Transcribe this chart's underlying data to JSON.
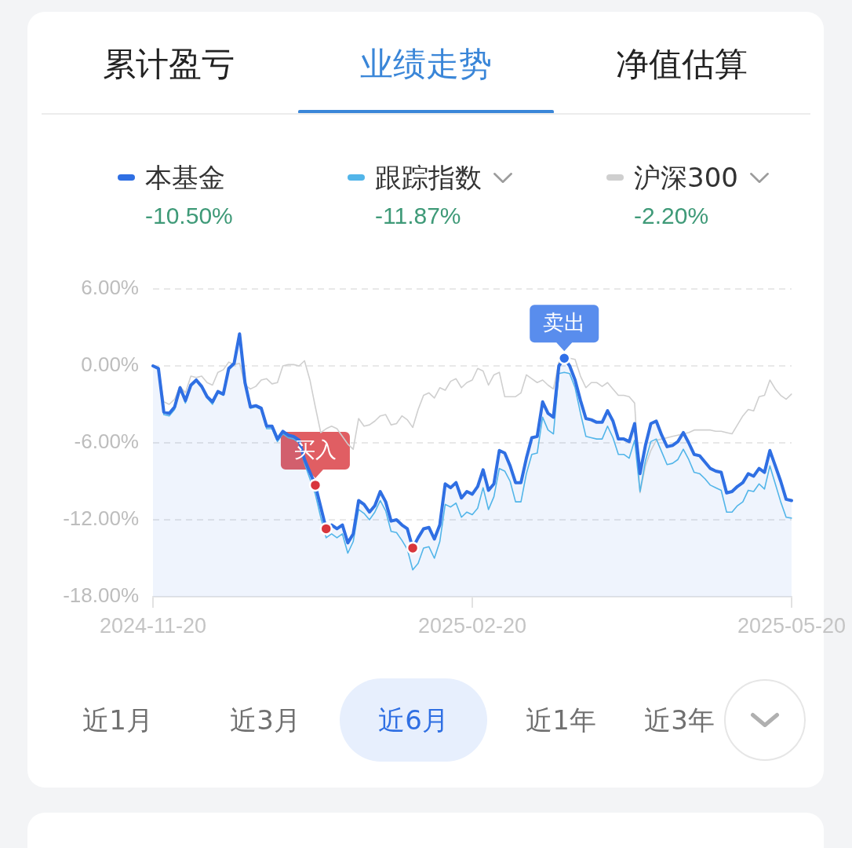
{
  "chart_data": {
    "type": "line",
    "categories": [
      "2024-11-20",
      null,
      null,
      null,
      null,
      null,
      null,
      null,
      null,
      null,
      null,
      null,
      null,
      null,
      null,
      null,
      null,
      null,
      null,
      null,
      null,
      null,
      null,
      null,
      null,
      null,
      null,
      null,
      null,
      null,
      null,
      null,
      null,
      null,
      null,
      null,
      null,
      null,
      null,
      null,
      null,
      null,
      null,
      null,
      null,
      null,
      null,
      null,
      null,
      null,
      null,
      null,
      null,
      null,
      null,
      null,
      null,
      null,
      null,
      "2025-02-20",
      null,
      null,
      null,
      null,
      null,
      null,
      null,
      null,
      null,
      null,
      null,
      null,
      null,
      null,
      null,
      null,
      null,
      null,
      null,
      null,
      null,
      null,
      null,
      null,
      null,
      null,
      null,
      null,
      null,
      null,
      null,
      null,
      null,
      null,
      null,
      null,
      null,
      null,
      null,
      null,
      null,
      null,
      null,
      null,
      null,
      null,
      null,
      null,
      null,
      null,
      null,
      null,
      null,
      null,
      null,
      null,
      null,
      null,
      "2025-05-20"
    ],
    "series": [
      {
        "name": "本基金",
        "color": "#2f6fe3",
        "values": [
          0.0,
          -0.2,
          -3.6,
          -3.7,
          -3.2,
          -1.7,
          -2.7,
          -1.5,
          -1.1,
          -1.6,
          -2.4,
          -2.8,
          -2.0,
          -2.2,
          -0.2,
          0.2,
          2.5,
          -1.3,
          -3.2,
          -3.1,
          -3.3,
          -4.7,
          -4.7,
          -5.7,
          -5.1,
          -5.4,
          -5.5,
          -5.8,
          -7.3,
          -8.3,
          -9.3,
          -11.0,
          -12.7,
          -12.4,
          -12.7,
          -12.4,
          -13.8,
          -13.1,
          -10.5,
          -10.8,
          -11.4,
          -10.9,
          -9.8,
          -10.6,
          -12.1,
          -12.0,
          -12.4,
          -12.7,
          -14.2,
          -13.4,
          -12.7,
          -12.6,
          -13.5,
          -12.4,
          -9.2,
          -9.5,
          -9.1,
          -10.3,
          -9.8,
          -10.0,
          -9.4,
          -8.1,
          -9.7,
          -9.2,
          -6.6,
          -6.8,
          -7.8,
          -9.1,
          -9.1,
          -7.2,
          -5.6,
          -5.5,
          -2.8,
          -3.7,
          -4.0,
          0.0,
          0.6,
          0.0,
          -1.1,
          -2.7,
          -4.1,
          -4.2,
          -4.4,
          -4.4,
          -3.5,
          -4.3,
          -5.7,
          -5.7,
          -5.9,
          -4.5,
          -8.4,
          -6.2,
          -4.5,
          -4.3,
          -5.4,
          -6.3,
          -6.2,
          -5.9,
          -5.2,
          -6.0,
          -6.9,
          -7.0,
          -7.5,
          -8.0,
          -8.2,
          -8.3,
          -9.9,
          -9.8,
          -9.4,
          -9.1,
          -8.4,
          -8.6,
          -8.0,
          -8.3,
          -6.6,
          -7.8,
          -9.0,
          -10.4,
          -10.5
        ],
        "lower": [
          -18,
          -18,
          -18,
          -18,
          -18,
          -18,
          -18,
          -18,
          -18,
          -18,
          -18,
          -18,
          -18,
          -18,
          -18,
          -18,
          -18,
          -18,
          -18,
          -18,
          -18,
          -18,
          -18,
          -18,
          -18,
          -18,
          -18,
          -18,
          -18,
          -18,
          -18,
          -18,
          -18,
          -18,
          -18,
          -18,
          -18,
          -18,
          -18,
          -18,
          -18,
          -18,
          -18,
          -18,
          -18,
          -18,
          -18,
          -18,
          -18,
          -18,
          -18,
          -18,
          -18,
          -18,
          -18,
          -18,
          -18,
          -18,
          -18,
          -18,
          -18,
          -18,
          -18,
          -18,
          -18,
          -18,
          -18,
          -18,
          -18,
          -18,
          -18,
          -18,
          -18,
          -18,
          -18,
          -18,
          -18,
          -18,
          -18,
          -18,
          -18,
          -18,
          -18,
          -18,
          -18,
          -18,
          -18,
          -18,
          -18,
          -18,
          -18,
          -18,
          -18,
          -18,
          -18,
          -18,
          -18,
          -18,
          -18,
          -18,
          -18,
          -18,
          -18,
          -18,
          -18,
          -18,
          -18,
          -18,
          -18,
          -18,
          -18,
          -18,
          -18,
          -18,
          -18,
          -18,
          -18,
          -18,
          -18
        ],
        "upper": [
          0.0,
          -0.2,
          -3.6,
          -3.7,
          -3.2,
          -1.7,
          -2.7,
          -1.5,
          -1.1,
          -1.6,
          -2.4,
          -2.8,
          -2.0,
          -2.2,
          -0.2,
          0.2,
          2.5,
          -1.3,
          -3.2,
          -3.1,
          -3.3,
          -4.7,
          -4.7,
          -5.7,
          -5.1,
          -5.4,
          -5.5,
          -5.8,
          -7.3,
          -8.3,
          -9.3,
          -11.0,
          -12.7,
          -12.4,
          -12.7,
          -12.4,
          -13.8,
          -13.1,
          -10.5,
          -10.8,
          -11.4,
          -10.9,
          -9.8,
          -10.6,
          -12.1,
          -12.0,
          -12.4,
          -12.7,
          -14.2,
          -13.4,
          -12.7,
          -12.6,
          -13.5,
          -12.4,
          -9.2,
          -9.5,
          -9.1,
          -10.3,
          -9.8,
          -10.0,
          -9.4,
          -8.1,
          -9.7,
          -9.2,
          -6.6,
          -6.8,
          -7.8,
          -9.1,
          -9.1,
          -7.2,
          -5.6,
          -5.5,
          -2.8,
          -3.7,
          -4.0,
          0.0,
          0.6,
          0.0,
          -1.1,
          -2.7,
          -4.1,
          -4.2,
          -4.4,
          -4.4,
          -3.5,
          -4.3,
          -5.7,
          -5.7,
          -5.9,
          -4.5,
          -8.4,
          -6.2,
          -4.5,
          -4.3,
          -5.4,
          -6.3,
          -6.2,
          -5.9,
          -5.2,
          -6.0,
          -6.9,
          -7.0,
          -7.5,
          -8.0,
          -8.2,
          -8.3,
          -9.9,
          -9.8,
          -9.4,
          -9.1,
          -8.4,
          -8.6,
          -8.0,
          -8.3,
          -6.6,
          -7.8,
          -9.0,
          -10.4,
          -10.5
        ]
      },
      {
        "name": "跟踪指数",
        "color": "#52b5e9",
        "values": [
          0.0,
          -0.3,
          -3.8,
          -3.9,
          -3.4,
          -1.8,
          -2.9,
          -1.6,
          -1.2,
          -1.7,
          -2.5,
          -3.0,
          -2.1,
          -2.3,
          -0.3,
          0.1,
          2.4,
          -1.4,
          -3.3,
          -3.2,
          -3.4,
          -4.9,
          -4.9,
          -5.9,
          -5.3,
          -5.6,
          -5.7,
          -6.0,
          -7.6,
          -8.8,
          -10.0,
          -11.8,
          -13.4,
          -13.1,
          -13.4,
          -13.1,
          -14.6,
          -13.7,
          -11.2,
          -11.5,
          -12.0,
          -11.4,
          -10.5,
          -11.3,
          -12.9,
          -13.0,
          -13.6,
          -14.3,
          -15.9,
          -15.4,
          -14.2,
          -14.1,
          -15.0,
          -13.7,
          -10.8,
          -11.0,
          -10.7,
          -11.8,
          -11.4,
          -11.6,
          -11.1,
          -9.5,
          -11.2,
          -10.2,
          -8.0,
          -8.2,
          -9.0,
          -10.6,
          -10.6,
          -8.4,
          -6.9,
          -6.8,
          -4.0,
          -5.0,
          -5.3,
          -0.6,
          -0.5,
          -0.6,
          -1.7,
          -3.7,
          -5.5,
          -5.6,
          -5.7,
          -5.7,
          -4.7,
          -5.6,
          -6.9,
          -6.9,
          -7.2,
          -5.8,
          -9.8,
          -7.4,
          -5.9,
          -5.7,
          -6.7,
          -7.7,
          -7.6,
          -7.3,
          -6.5,
          -7.3,
          -8.3,
          -8.4,
          -8.8,
          -9.3,
          -9.5,
          -9.7,
          -11.4,
          -11.4,
          -10.9,
          -10.6,
          -9.7,
          -9.8,
          -9.2,
          -9.6,
          -7.8,
          -9.2,
          -10.6,
          -11.8,
          -11.87
        ]
      },
      {
        "name": "沪深300",
        "color": "#cfcfcf",
        "values": [
          0.0,
          -0.2,
          -2.8,
          -3.0,
          -2.6,
          -1.6,
          -2.1,
          -0.8,
          -0.9,
          -0.8,
          -1.3,
          -1.5,
          -0.5,
          -0.3,
          0.3,
          0.1,
          0.2,
          -1.5,
          -1.8,
          -1.6,
          -1.1,
          -1.0,
          -1.4,
          -1.3,
          0.0,
          0.1,
          0.1,
          0.0,
          0.4,
          -1.1,
          -3.2,
          -5.2,
          -4.9,
          -4.7,
          -4.9,
          -5.5,
          -6.1,
          -6.5,
          -4.1,
          -4.7,
          -4.6,
          -4.3,
          -3.9,
          -3.8,
          -4.6,
          -4.5,
          -3.9,
          -4.2,
          -4.8,
          -3.4,
          -2.3,
          -2.1,
          -2.5,
          -1.7,
          -1.9,
          -1.2,
          -1.0,
          -1.7,
          -1.3,
          -1.1,
          -0.2,
          -0.4,
          -1.5,
          -0.7,
          -0.5,
          -2.4,
          -2.4,
          -2.4,
          -2.1,
          -0.7,
          -1.0,
          -1.3,
          -1.1,
          -1.5,
          -1.8,
          0.3,
          0.5,
          0.6,
          0.5,
          -0.8,
          -1.7,
          -1.3,
          -1.3,
          -1.6,
          -1.3,
          -1.8,
          -2.3,
          -2.3,
          -2.4,
          -2.9,
          -9.9,
          -7.8,
          -6.6,
          -5.8,
          -5.7,
          -5.6,
          -5.5,
          -5.4,
          -5.3,
          -5.2,
          -5.0,
          -5.0,
          -5.0,
          -5.0,
          -5.1,
          -5.1,
          -5.2,
          -5.3,
          -4.6,
          -3.9,
          -3.4,
          -3.5,
          -2.4,
          -2.3,
          -1.1,
          -1.8,
          -2.3,
          -2.6,
          -2.2
        ]
      },
      {
        "name": "买入",
        "type": "scatter",
        "marker": "circle",
        "color": "#d8363c",
        "values": [
          null,
          null,
          null,
          null,
          null,
          null,
          null,
          null,
          null,
          null,
          null,
          null,
          null,
          null,
          null,
          null,
          null,
          null,
          null,
          null,
          null,
          null,
          null,
          null,
          null,
          null,
          null,
          null,
          null,
          null,
          -9.3,
          null,
          -12.7,
          null,
          null,
          null,
          null,
          null,
          null,
          null,
          null,
          null,
          null,
          null,
          null,
          null,
          null,
          null,
          -14.2,
          null,
          null,
          null,
          null,
          null,
          null,
          null,
          null,
          null,
          null,
          null,
          null,
          null,
          null,
          null,
          null,
          null,
          null,
          null,
          null,
          null,
          null,
          null,
          null,
          null,
          null,
          null,
          null,
          null,
          null,
          null,
          null,
          null,
          null,
          null,
          null,
          null,
          null,
          null,
          null,
          null,
          null,
          null,
          null,
          null,
          null,
          null,
          null,
          null,
          null,
          null,
          null,
          null,
          null,
          null,
          null,
          null,
          null,
          null,
          null,
          null,
          null,
          null,
          null,
          null,
          null,
          null,
          null,
          null,
          null
        ]
      },
      {
        "name": "卖出",
        "type": "scatter",
        "marker": "circle",
        "color": "#3070e8",
        "values": [
          null,
          null,
          null,
          null,
          null,
          null,
          null,
          null,
          null,
          null,
          null,
          null,
          null,
          null,
          null,
          null,
          null,
          null,
          null,
          null,
          null,
          null,
          null,
          null,
          null,
          null,
          null,
          null,
          null,
          null,
          null,
          null,
          null,
          null,
          null,
          null,
          null,
          null,
          null,
          null,
          null,
          null,
          null,
          null,
          null,
          null,
          null,
          null,
          null,
          null,
          null,
          null,
          null,
          null,
          null,
          null,
          null,
          null,
          null,
          null,
          null,
          null,
          null,
          null,
          null,
          null,
          null,
          null,
          null,
          null,
          null,
          null,
          null,
          null,
          null,
          null,
          0.6,
          null,
          null,
          null,
          null,
          null,
          null,
          null,
          null,
          null,
          null,
          null,
          null,
          null,
          null,
          null,
          null,
          null,
          null,
          null,
          null,
          null,
          null,
          null,
          null,
          null,
          null,
          null,
          null,
          null,
          null,
          null,
          null,
          null,
          null,
          null,
          null,
          null,
          null,
          null,
          null,
          null,
          null
        ]
      }
    ],
    "ylim": [
      -18,
      6
    ],
    "yticks": [
      {
        "value": -18,
        "label": "-18.00%"
      },
      {
        "value": -12,
        "label": "-12.00%"
      },
      {
        "value": -6,
        "label": "-6.00%"
      },
      {
        "value": 0,
        "label": "0.00%"
      },
      {
        "value": 6,
        "label": "6.00%"
      }
    ],
    "grid": "y",
    "legend": "top",
    "marker": "none",
    "annotations": [
      "累计盈亏",
      "业绩走势",
      "净值估算",
      "-10.50%",
      "-11.87%",
      "-2.20%",
      "近1月",
      "近3月",
      "近6月",
      "近1年",
      "近3年"
    ]
  }
}
